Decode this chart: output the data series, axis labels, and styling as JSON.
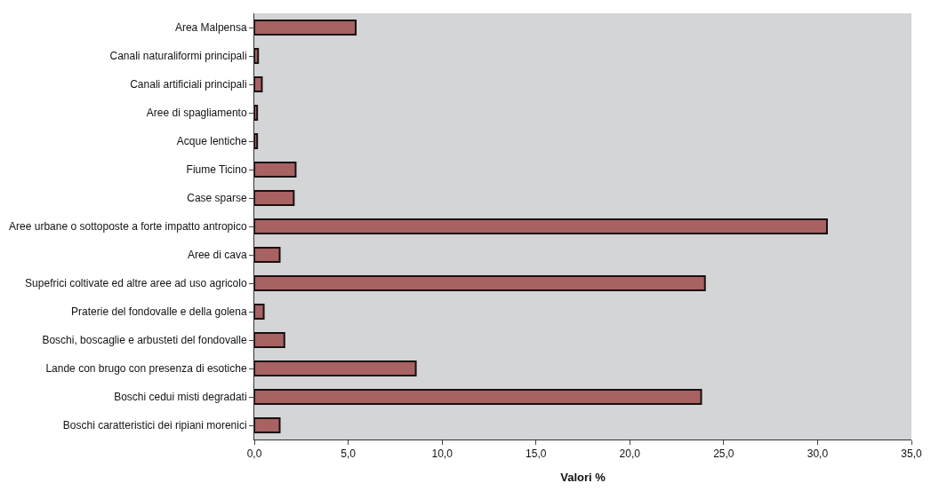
{
  "chart_data": {
    "type": "bar",
    "orientation": "horizontal",
    "xlabel": "Valori %",
    "categories": [
      "Area Malpensa",
      "Canali naturaliformi principali",
      "Canali artificiali principali",
      "Aree di spagliamento",
      "Acque lentiche",
      "Fiume Ticino",
      "Case sparse",
      "Aree urbane o sottoposte a forte impatto antropico",
      "Aree di cava",
      "Supefrici coltivate ed altre aree ad uso agricolo",
      "Praterie del fondovalle e della golena",
      "Boschi, boscaglie e arbusteti del fondovalle",
      "Lande con brugo con presenza di esotiche",
      "Boschi cedui misti degradati",
      "Boschi caratteristici dei ripiani morenici"
    ],
    "values": [
      5.4,
      0.2,
      0.4,
      0.15,
      0.15,
      2.2,
      2.1,
      30.5,
      1.35,
      24.0,
      0.5,
      1.6,
      8.6,
      23.8,
      1.35
    ],
    "color": "#a86262",
    "xlim": [
      0,
      35
    ],
    "xticks": [
      {
        "value": 0,
        "label": "0,0"
      },
      {
        "value": 5,
        "label": "5,0"
      },
      {
        "value": 10,
        "label": "10,0"
      },
      {
        "value": 15,
        "label": "15,0"
      },
      {
        "value": 20,
        "label": "20,0"
      },
      {
        "value": 25,
        "label": "25,0"
      },
      {
        "value": 30,
        "label": "30,0"
      },
      {
        "value": 35,
        "label": "35,0"
      }
    ],
    "grid": false
  }
}
